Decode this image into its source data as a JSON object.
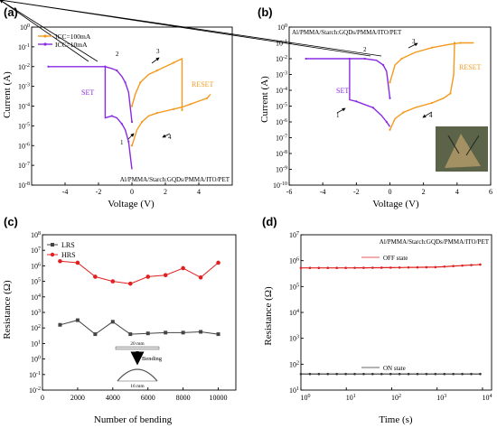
{
  "colors": {
    "orange": "#f39a1e",
    "purple": "#8a2be2",
    "red": "#e02020",
    "gray": "#444444",
    "darkgray": "#333333"
  },
  "chart_data": [
    {
      "panel": "(a)",
      "type": "line",
      "xlabel": "Voltage (V)",
      "ylabel": "Current (A)",
      "xlim": [
        -6,
        6
      ],
      "ylim_log10": [
        -8,
        0
      ],
      "xticks": [
        "-4",
        "-2",
        "0",
        "2",
        "4"
      ],
      "yticks": [
        "10-8",
        "10-7",
        "10-6",
        "10-5",
        "10-4",
        "10-3",
        "10-2",
        "10-1",
        "100"
      ],
      "legend": [
        "ICC=100mA",
        "ICC=10mA"
      ],
      "annotations": {
        "set": "SET",
        "reset": "RESET",
        "device": "Al/PMMA/Starch:GQDs/PMMA/ITO/PET",
        "n1": "1",
        "n2": "2",
        "n3": "3",
        "n4": "4"
      },
      "series": [
        {
          "name": "ICC=100mA",
          "color": "orange",
          "segments": [
            [
              [
                0,
                -6.0
              ],
              [
                0.3,
                -5.2
              ],
              [
                0.6,
                -4.8
              ],
              [
                1.0,
                -4.5
              ],
              [
                1.5,
                -4.35
              ],
              [
                2.0,
                -4.25
              ],
              [
                2.5,
                -4.15
              ],
              [
                3.0,
                -4.05
              ],
              [
                3.5,
                -3.9
              ],
              [
                4.0,
                -3.75
              ],
              [
                4.5,
                -3.6
              ],
              [
                4.7,
                -3.4
              ]
            ],
            [
              [
                0,
                -4.0
              ],
              [
                0.2,
                -3.4
              ],
              [
                0.5,
                -2.8
              ],
              [
                1.0,
                -2.4
              ],
              [
                1.5,
                -2.2
              ],
              [
                2.0,
                -2.0
              ],
              [
                2.5,
                -1.8
              ],
              [
                3.0,
                -1.6
              ],
              [
                3.0,
                -4.2
              ]
            ]
          ]
        },
        {
          "name": "ICC=10mA",
          "color": "purple",
          "segments": [
            [
              [
                -5,
                -2.0
              ],
              [
                -3,
                -2.0
              ],
              [
                -1.6,
                -2.0
              ],
              [
                -1.2,
                -2.1
              ],
              [
                -0.9,
                -2.2
              ],
              [
                -0.6,
                -2.5
              ],
              [
                -0.4,
                -2.8
              ],
              [
                -0.2,
                -3.3
              ],
              [
                0,
                -4.8
              ]
            ],
            [
              [
                -1.6,
                -2.0
              ],
              [
                -1.6,
                -4.6
              ],
              [
                -1.2,
                -4.5
              ],
              [
                -0.9,
                -4.6
              ],
              [
                -0.6,
                -4.9
              ],
              [
                -0.4,
                -5.2
              ],
              [
                -0.2,
                -5.8
              ],
              [
                0,
                -7.2
              ]
            ]
          ]
        }
      ]
    },
    {
      "panel": "(b)",
      "type": "line",
      "xlabel": "Voltage (V)",
      "ylabel": "Current (A)",
      "xlim": [
        -6,
        6
      ],
      "ylim_log10": [
        -10,
        0
      ],
      "xticks": [
        "-6",
        "-4",
        "-2",
        "0",
        "2",
        "4",
        "6"
      ],
      "yticks": [
        "10-10",
        "10-9",
        "10-8",
        "10-7",
        "10-6",
        "10-5",
        "10-4",
        "10-3",
        "10-2",
        "10-1",
        "100"
      ],
      "annotations": {
        "set": "SET",
        "reset": "RESET",
        "device": "Al/PMMA/Starch:GQDs/PMMA/ITO/PET",
        "n1": "1",
        "n2": "2",
        "n3": "3",
        "n4": "4"
      },
      "series": [
        {
          "name": "",
          "color": "orange",
          "segments": [
            [
              [
                0,
                -3.5
              ],
              [
                0.3,
                -2.4
              ],
              [
                0.7,
                -2.0
              ],
              [
                1.5,
                -1.6
              ],
              [
                2.5,
                -1.3
              ],
              [
                3.5,
                -1.1
              ],
              [
                4.2,
                -1.0
              ],
              [
                5,
                -1.0
              ]
            ],
            [
              [
                0,
                -6.5
              ],
              [
                0.3,
                -5.8
              ],
              [
                0.8,
                -5.4
              ],
              [
                1.5,
                -5.1
              ],
              [
                2.5,
                -4.8
              ],
              [
                3.2,
                -4.5
              ],
              [
                3.6,
                -4.2
              ],
              [
                3.8,
                -3.0
              ],
              [
                3.85,
                -1.0
              ]
            ]
          ]
        },
        {
          "name": "",
          "color": "purple",
          "segments": [
            [
              [
                -5,
                -2.0
              ],
              [
                -2.4,
                -2.0
              ],
              [
                -1.5,
                -2.0
              ],
              [
                -0.8,
                -2.1
              ],
              [
                -0.4,
                -2.4
              ],
              [
                -0.2,
                -2.8
              ],
              [
                0,
                -4.5
              ]
            ],
            [
              [
                -2.4,
                -2.0
              ],
              [
                -2.4,
                -4.6
              ],
              [
                -2.0,
                -4.7
              ],
              [
                -1.5,
                -4.9
              ],
              [
                -1.0,
                -5.1
              ],
              [
                -0.5,
                -5.6
              ],
              [
                -0.2,
                -6.0
              ],
              [
                0,
                -6.3
              ]
            ]
          ]
        }
      ]
    },
    {
      "panel": "(c)",
      "type": "line",
      "xlabel": "Number of bending",
      "ylabel": "Resistance (Ω)",
      "xlim": [
        0,
        11000
      ],
      "ylim_log10": [
        -2,
        8
      ],
      "xticks": [
        "0",
        "2000",
        "4000",
        "6000",
        "8000",
        "10000"
      ],
      "yticks": [
        "10-2",
        "10-1",
        "100",
        "101",
        "102",
        "103",
        "104",
        "105",
        "106",
        "107",
        "108"
      ],
      "legend": [
        "LRS",
        "HRS"
      ],
      "inset": {
        "top": "20 mm",
        "bottom": "16 mm",
        "action": "Bending"
      },
      "x": [
        1000,
        2000,
        3000,
        4000,
        5000,
        6000,
        7000,
        8000,
        9000,
        10000
      ],
      "series": [
        {
          "name": "LRS",
          "color": "gray",
          "values_log10": [
            2.2,
            2.5,
            1.6,
            2.4,
            1.6,
            1.65,
            1.7,
            1.7,
            1.75,
            1.6
          ]
        },
        {
          "name": "HRS",
          "color": "red",
          "values_log10": [
            6.3,
            6.2,
            5.3,
            5.0,
            4.85,
            5.3,
            5.4,
            5.85,
            5.25,
            6.2
          ]
        }
      ]
    },
    {
      "panel": "(d)",
      "type": "scatter",
      "xlabel": "Time (s)",
      "ylabel": "Resistance (Ω)",
      "xlim_log10": [
        0,
        4.2
      ],
      "ylim_log10": [
        1,
        7
      ],
      "xticks": [
        "100",
        "101",
        "102",
        "103",
        "104"
      ],
      "yticks": [
        "101",
        "102",
        "103",
        "104",
        "105",
        "106",
        "107"
      ],
      "labels": {
        "off": "OFF state",
        "on": "ON state",
        "device": "Al/PMMA/Starch:GQDs/PMMA/ITO/PET"
      },
      "series": [
        {
          "name": "OFF state",
          "color": "red",
          "x_log10_range": [
            0,
            3.95
          ],
          "y_log10": [
            5.72,
            5.72,
            5.73,
            5.75,
            5.85
          ]
        },
        {
          "name": "ON state",
          "color": "darkgray",
          "x_log10_range": [
            0,
            3.95
          ],
          "y_log10": [
            1.62,
            1.62,
            1.62,
            1.62,
            1.62
          ]
        }
      ]
    }
  ]
}
